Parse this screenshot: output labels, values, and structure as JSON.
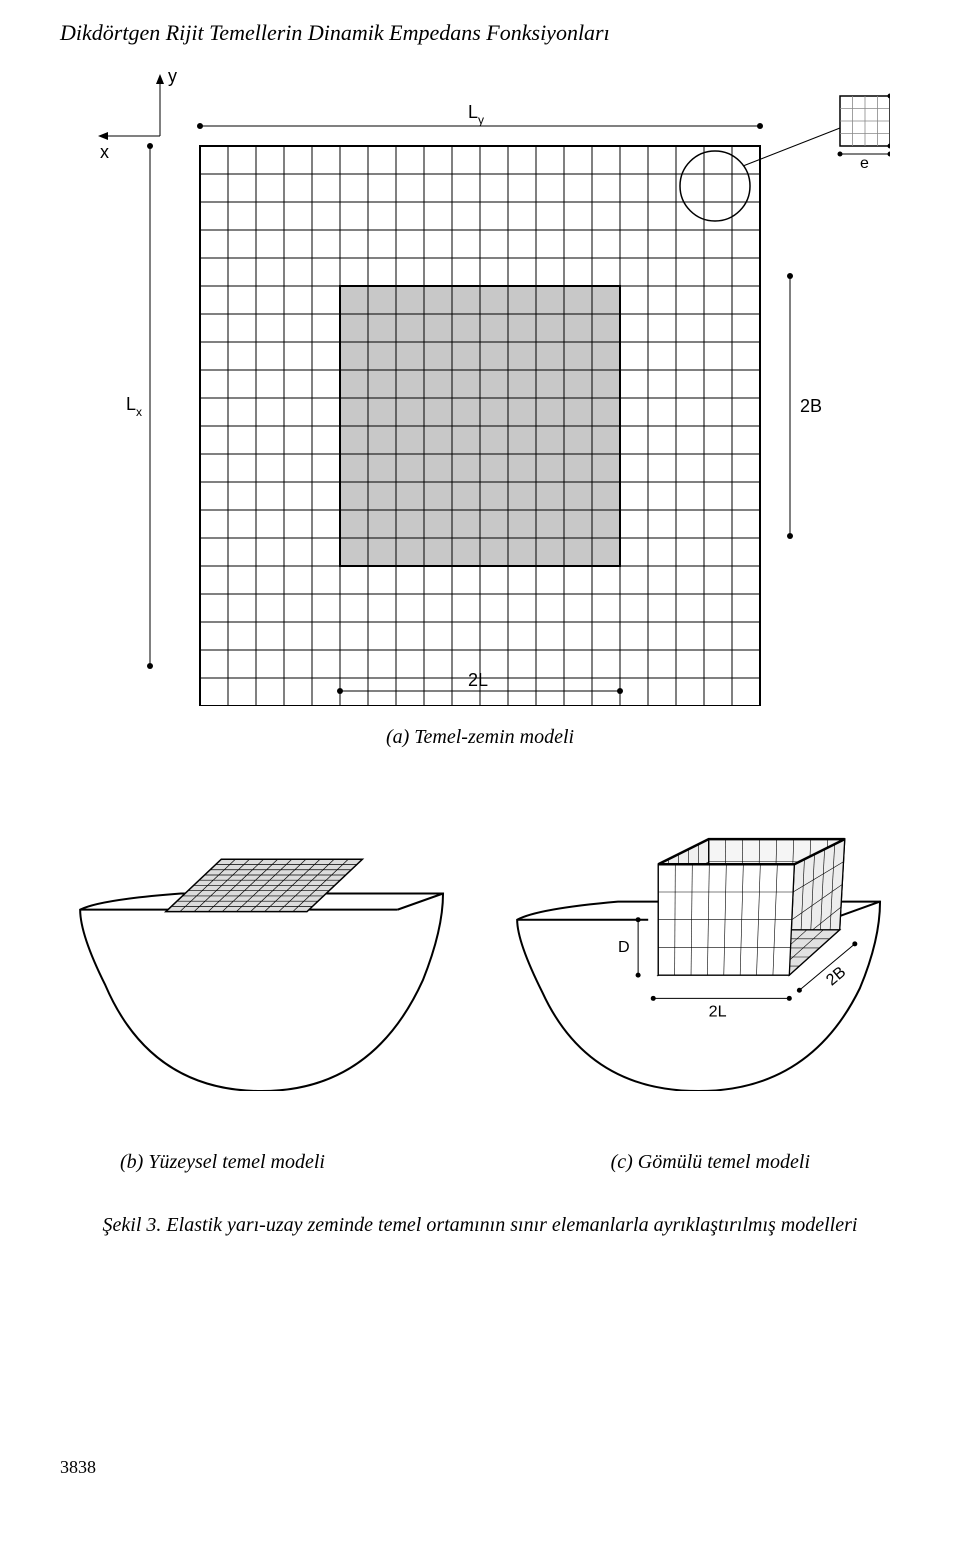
{
  "title": "Dikdörtgen Rijit Temellerin Dinamik Empedans Fonksiyonları",
  "fig_a": {
    "caption": "(a) Temel-zemin modeli",
    "labels": {
      "y": "y",
      "x": "x",
      "Ly": "L",
      "Ly_sub": "y",
      "Lx": "L",
      "Lx_sub": "x",
      "e1": "e",
      "e2": "e",
      "B2": "2B",
      "L2": "2L"
    },
    "outer_cells": 20,
    "inner_cells": 10,
    "grid_stroke": "#000000",
    "grid_stroke_width": 1,
    "inner_fill": "#c8c8c8",
    "background": "#ffffff",
    "font_size": 16
  },
  "fig_b": {
    "caption": "(b) Yüzeysel temel modeli",
    "grid_cells": 10,
    "grid_stroke": "#000000",
    "grid_fill": "#dcdcdc"
  },
  "fig_c": {
    "caption": "(c) Gömülü temel modeli",
    "labels": {
      "D": "D",
      "L2": "2L",
      "B2": "2B"
    },
    "grid_stroke": "#000000"
  },
  "figure_caption": "Şekil 3. Elastik yarı-uzay zeminde temel ortamının sınır elemanlarla ayrıklaştırılmış modelleri",
  "page_number": "3838"
}
